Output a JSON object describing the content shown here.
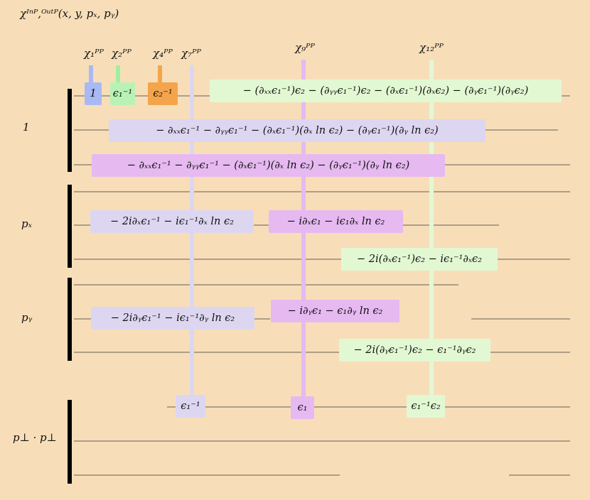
{
  "title": "χᴵⁿᴾ,ᴼᵘᵗᴾ(x, y, pₓ, pᵧ)",
  "columns": [
    "χ₁ᴾᴾ",
    "χ₂ᴾᴾ",
    "χ₄ᴾᴾ",
    "χ₇ᴾᴾ",
    "χ₉ᴾᴾ",
    "χ₁₂ᴾᴾ"
  ],
  "rows": [
    "1",
    "pₓ",
    "pᵧ",
    "p⊥ · p⊥"
  ],
  "boxes": [
    "1",
    "ϵ₁⁻¹",
    "ϵ₂⁻¹",
    "− (∂ₓₓϵ₁⁻¹)ϵ₂ − (∂ᵧᵧϵ₁⁻¹)ϵ₂ − (∂ₓϵ₁⁻¹)(∂ₓϵ₂) − (∂ᵧϵ₁⁻¹)(∂ᵧϵ₂)",
    "− ∂ₓₓϵ₁⁻¹ − ∂ᵧᵧϵ₁⁻¹ − (∂ₓϵ₁⁻¹)(∂ₓ ln ϵ₂) − (∂ᵧϵ₁⁻¹)(∂ᵧ ln ϵ₂)",
    "− ∂ₓₓϵ₁⁻¹ − ∂ᵧᵧϵ₁⁻¹ − (∂ₓϵ₁⁻¹)(∂ₓ ln ϵ₂) − (∂ᵧϵ₁⁻¹)(∂ᵧ ln ϵ₂)",
    "− 2i∂ₓϵ₁⁻¹ − iϵ₁⁻¹∂ₓ ln ϵ₂",
    "− i∂ₓϵ₁ − iϵ₁∂ₓ ln ϵ₂",
    "− 2i(∂ₓϵ₁⁻¹)ϵ₂ − iϵ₁⁻¹∂ₓϵ₂",
    "− 2i∂ᵧϵ₁⁻¹ − iϵ₁⁻¹∂ᵧ ln ϵ₂",
    "− i∂ᵧϵ₁ − ϵ₁∂ᵧ ln ϵ₂",
    "− 2i(∂ᵧϵ₁⁻¹)ϵ₂ − ϵ₁⁻¹∂ᵧϵ₂",
    "ϵ₁⁻¹",
    "ϵ₁",
    "ϵ₁⁻¹ϵ₂"
  ]
}
